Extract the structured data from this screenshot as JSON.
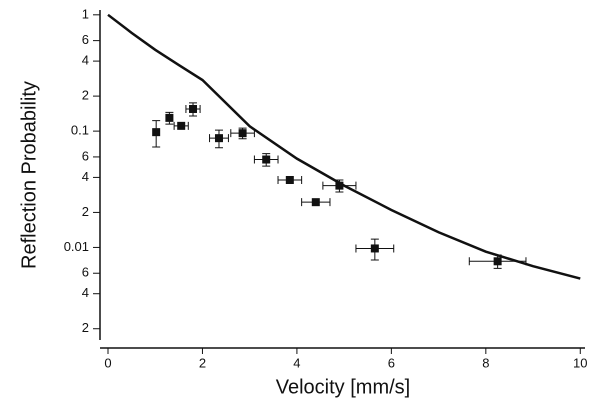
{
  "chart_data": {
    "type": "scatter",
    "x_label": "Velocity [mm/s]",
    "y_label": "Reflection Probability",
    "log_y": true,
    "color": "#111111",
    "xlim": [
      0,
      10.1
    ],
    "ylim": [
      0.0016,
      1.1
    ],
    "xticks": [
      0,
      2,
      4,
      6,
      8,
      10
    ],
    "yticks": [
      1,
      {
        "value": 0.6,
        "label": "6"
      },
      {
        "value": 0.4,
        "label": "4"
      },
      {
        "value": 0.2,
        "label": "2"
      },
      0.1,
      {
        "value": 0.06,
        "label": "6"
      },
      {
        "value": 0.04,
        "label": "4"
      },
      {
        "value": 0.02,
        "label": "2"
      },
      0.01,
      {
        "value": 0.006,
        "label": "6"
      },
      {
        "value": 0.004,
        "label": "4"
      },
      {
        "value": 0.002,
        "label": "2"
      }
    ],
    "points": {
      "x": [
        1.02,
        1.3,
        1.55,
        1.8,
        2.35,
        2.85,
        3.35,
        3.85,
        4.4,
        4.9,
        5.65,
        8.25
      ],
      "y": [
        0.098,
        0.13,
        0.111,
        0.155,
        0.087,
        0.096,
        0.057,
        0.038,
        0.0245,
        0.034,
        0.0098,
        0.0076
      ],
      "x_err": [
        null,
        null,
        0.15,
        0.15,
        0.2,
        0.25,
        0.25,
        0.25,
        0.3,
        0.35,
        0.4,
        0.6
      ],
      "y_err": [
        0.025,
        0.015,
        null,
        0.02,
        0.015,
        0.01,
        0.007,
        null,
        null,
        0.004,
        0.002,
        0.001
      ]
    },
    "curve": {
      "x": [
        0,
        0.5,
        1,
        1.5,
        2,
        3,
        4,
        5,
        6,
        7,
        8,
        9,
        10
      ],
      "y": [
        1,
        0.7,
        0.5,
        0.37,
        0.275,
        0.11,
        0.058,
        0.034,
        0.021,
        0.0135,
        0.0092,
        0.0069,
        0.0054
      ]
    }
  }
}
